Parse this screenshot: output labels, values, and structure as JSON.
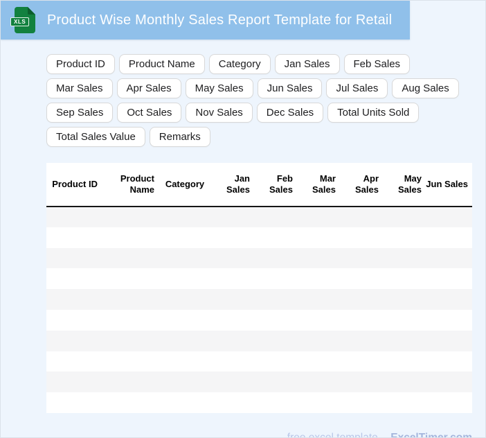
{
  "header": {
    "title": "Product Wise Monthly Sales Report Template for Retail",
    "icon_label": "XLS"
  },
  "column_tags": [
    "Product ID",
    "Product Name",
    "Category",
    "Jan Sales",
    "Feb Sales",
    "Mar Sales",
    "Apr Sales",
    "May Sales",
    "Jun Sales",
    "Jul Sales",
    "Aug Sales",
    "Sep Sales",
    "Oct Sales",
    "Nov Sales",
    "Dec Sales",
    "Total Units Sold",
    "Total Sales Value",
    "Remarks"
  ],
  "table": {
    "columns": [
      {
        "label": "Product ID",
        "align": "right"
      },
      {
        "label": "Product Name",
        "align": "right"
      },
      {
        "label": "Category",
        "align": "center"
      },
      {
        "label": "Jan Sales",
        "align": "right"
      },
      {
        "label": "Feb Sales",
        "align": "right"
      },
      {
        "label": "Mar Sales",
        "align": "right"
      },
      {
        "label": "Apr Sales",
        "align": "right"
      },
      {
        "label": "May Sales",
        "align": "right"
      },
      {
        "label": "Jun Sales",
        "align": "right"
      }
    ],
    "empty_row_count": 10
  },
  "footer": {
    "text": "free excel template -",
    "brand": "ExcelTimer.com"
  },
  "colors": {
    "title_bar": "#90c0ea",
    "page_background": "#eef5fd",
    "icon_green": "#12813f",
    "icon_fold": "#0b5f2d",
    "row_stripe": "#f5f5f6",
    "footer_text": "#b9c7e9",
    "footer_brand": "#a4b6dd"
  }
}
